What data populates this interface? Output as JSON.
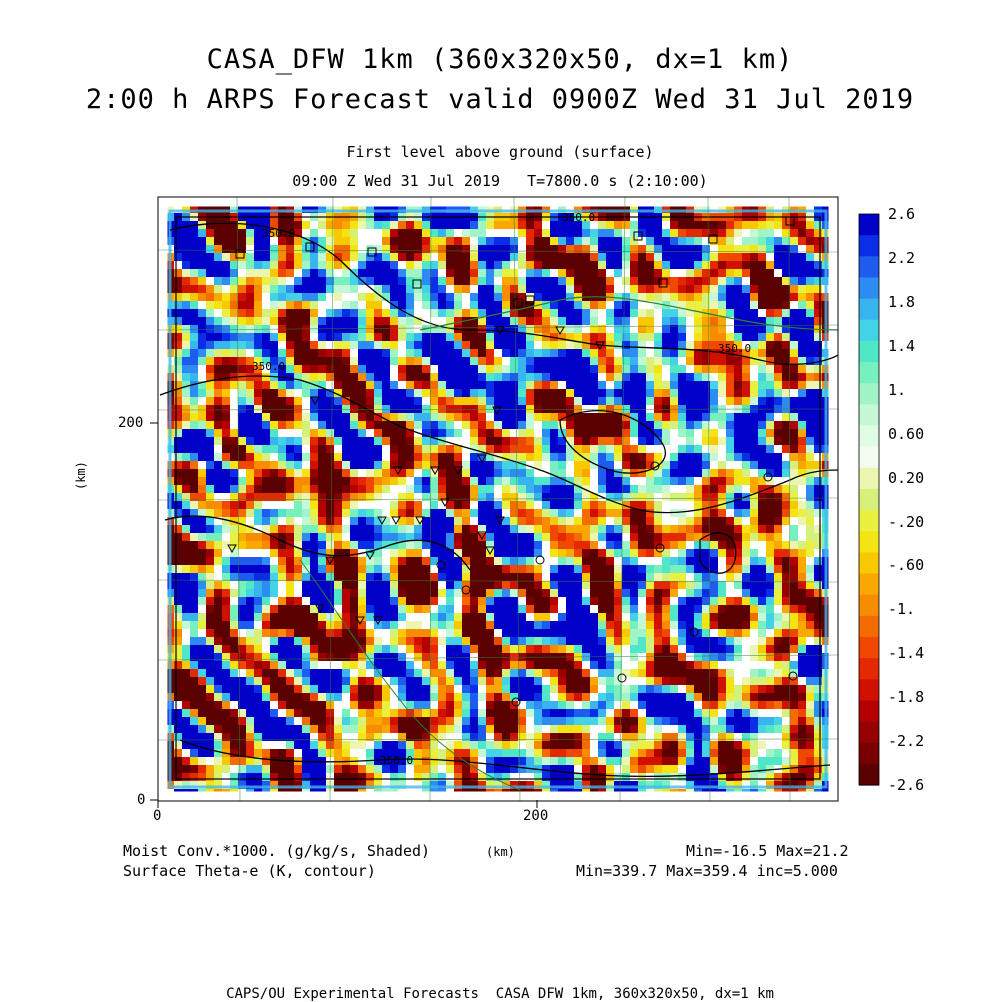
{
  "header": {
    "title_line1": "CASA_DFW 1km (360x320x50, dx=1 km)",
    "title_line2": "2:00 h ARPS Forecast valid 0900Z Wed 31 Jul 2019",
    "subtitle_level": "First level above ground (surface)",
    "subtitle_time": "09:00 Z Wed 31 Jul 2019   T=7800.0 s (2:10:00)"
  },
  "legend_text": {
    "shaded_field": "Moist Conv.*1000. (g/kg/s, Shaded)",
    "contour_field": "Surface Theta-e (K, contour)",
    "shaded_range": "Min=-16.5 Max=21.2",
    "contour_range": "Min=339.7 Max=359.4 inc=5.000"
  },
  "footer": "CAPS/OU Experimental Forecasts  CASA DFW 1km, 360x320x50, dx=1 km",
  "chart_data": {
    "type": "heatmap",
    "title": "CASA_DFW 1km (360x320x50, dx=1 km)",
    "xlabel": "(km)",
    "ylabel": "(km)",
    "xlim": [
      0,
      360
    ],
    "ylim": [
      0,
      320
    ],
    "xticks": [
      "0",
      "200"
    ],
    "yticks": [
      "0",
      "200"
    ],
    "colorbar": {
      "labels": [
        "2.6",
        "2.2",
        "1.8",
        "1.4",
        "1.",
        "0.60",
        "0.20",
        "-.20",
        "-.60",
        "-1.",
        "-1.4",
        "-1.8",
        "-2.2",
        "-2.6"
      ],
      "colors": [
        "#0000c8",
        "#0a2ee6",
        "#1e5cf0",
        "#2c8cf2",
        "#38b4ee",
        "#44d2e6",
        "#50e6c8",
        "#78f0be",
        "#a0f4c8",
        "#c4f8d6",
        "#e0fce4",
        "#f4fcf0",
        "#ecf6b0",
        "#d6f07c",
        "#eaf040",
        "#f4e414",
        "#f8c800",
        "#f8a800",
        "#f88c00",
        "#f46c00",
        "#f04800",
        "#e42800",
        "#d01000",
        "#b40000",
        "#960000",
        "#780000",
        "#5a0000"
      ]
    },
    "contour_labels": [
      "350.0",
      "350.0",
      "350.0",
      "350.0",
      "350.0"
    ],
    "extremes": {
      "shaded_min": -16.5,
      "shaded_max": 21.2,
      "contour_min": 339.7,
      "contour_max": 359.4,
      "contour_inc": 5.0
    }
  }
}
